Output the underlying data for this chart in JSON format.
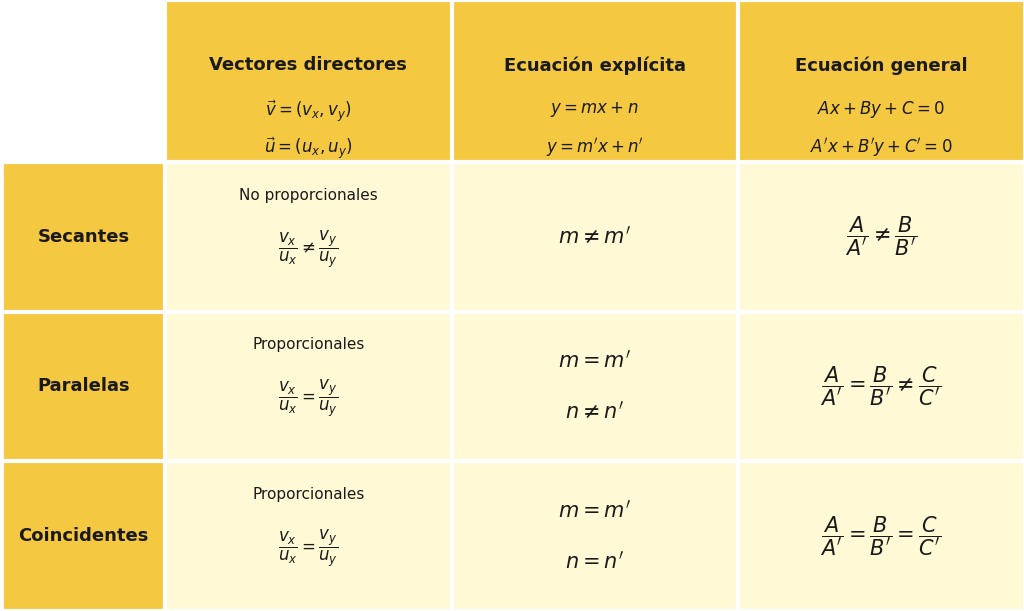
{
  "background_color": "#FFFFFF",
  "header_bg": "#F5C842",
  "row_label_bg": "#F5C842",
  "cell_bg_light": "#FFF9D6",
  "text_color_dark": "#1a1a1a",
  "rows": [
    "Secantes",
    "Paralelas",
    "Coincidentes"
  ]
}
